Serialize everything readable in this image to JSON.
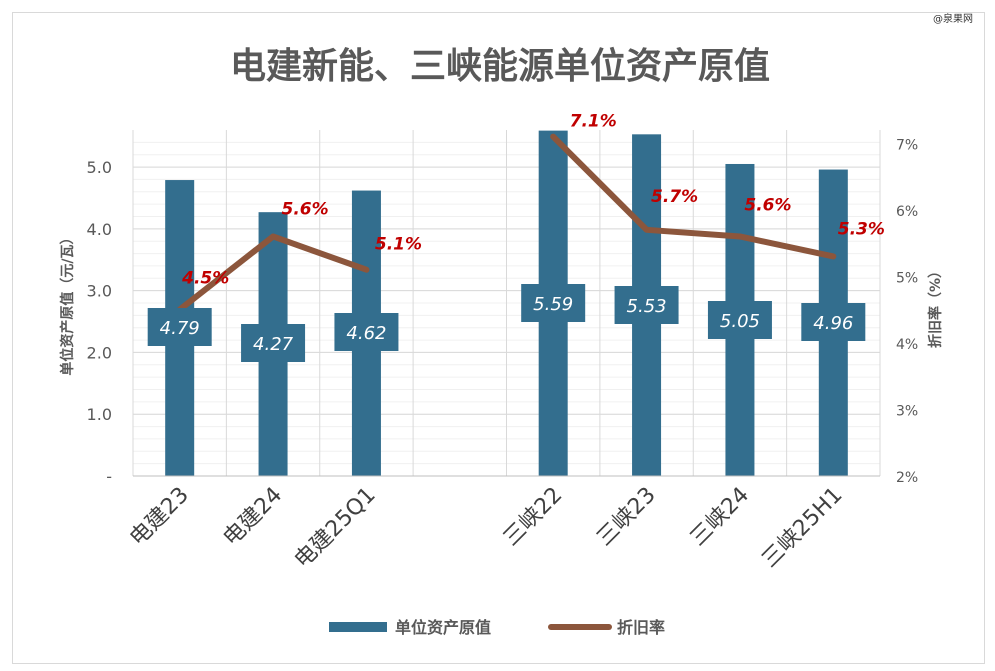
{
  "watermark": "@泉果网",
  "chart_data": {
    "type": "bar",
    "title": "电建新能、三峡能源单位资产原值",
    "categories": [
      "电建23",
      "电建24",
      "电建25Q1",
      "",
      "三峡22",
      "三峡23",
      "三峡24",
      "三峡25H1"
    ],
    "series": [
      {
        "name": "单位资产原值",
        "type": "bar",
        "axis": "left",
        "values": [
          4.79,
          4.27,
          4.62,
          null,
          5.59,
          5.53,
          5.05,
          4.96
        ],
        "labels": [
          "4.79",
          "4.27",
          "4.62",
          "",
          "5.59",
          "5.53",
          "5.05",
          "4.96"
        ]
      },
      {
        "name": "折旧率",
        "type": "line",
        "axis": "right",
        "values": [
          4.5,
          5.6,
          5.1,
          null,
          7.1,
          5.7,
          5.6,
          5.3
        ],
        "labels": [
          "4.5%",
          "5.6%",
          "5.1%",
          "",
          "7.1%",
          "5.7%",
          "5.6%",
          "5.3%"
        ]
      }
    ],
    "ylabel": "单位资产原值（元/瓦）",
    "ylim": [
      0,
      5.6
    ],
    "yticks": [
      {
        "value": 0,
        "label": "-"
      },
      {
        "value": 1,
        "label": "1.0"
      },
      {
        "value": 2,
        "label": "2.0"
      },
      {
        "value": 3,
        "label": "3.0"
      },
      {
        "value": 4,
        "label": "4.0"
      },
      {
        "value": 5,
        "label": "5.0"
      }
    ],
    "y2label": "折旧率（%）",
    "y2lim": [
      2,
      7.2
    ],
    "y2ticks": [
      {
        "value": 2,
        "label": "2%"
      },
      {
        "value": 3,
        "label": "3%"
      },
      {
        "value": 4,
        "label": "4%"
      },
      {
        "value": 5,
        "label": "5%"
      },
      {
        "value": 6,
        "label": "6%"
      },
      {
        "value": 7,
        "label": "7%"
      }
    ],
    "grid": true,
    "legend_position": "bottom",
    "colors": {
      "bar": "#336e8e",
      "line": "#8c563c",
      "line_label": "#c00000",
      "bar_label": "#ffffff"
    }
  }
}
